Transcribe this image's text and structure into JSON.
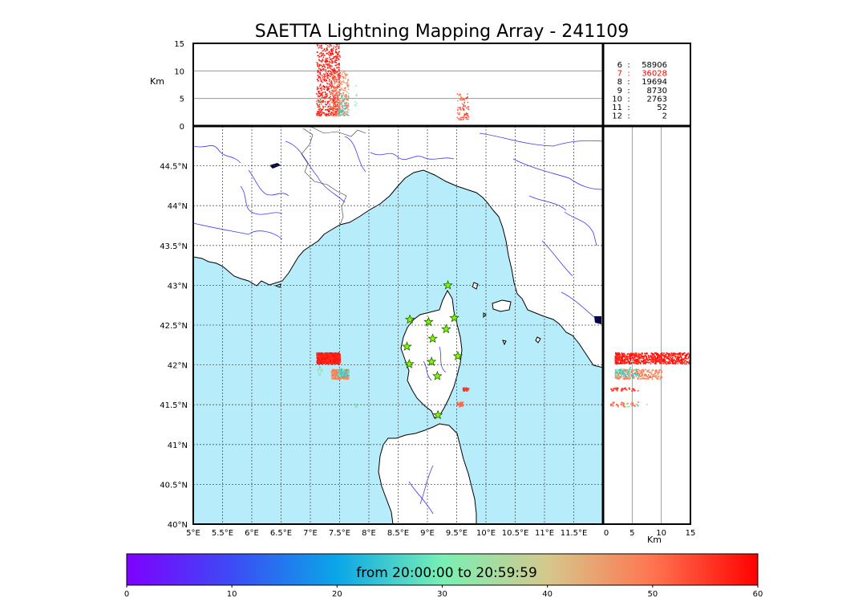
{
  "title": "SAETTA Lightning Mapping Array - 241109",
  "altitude_axis": {
    "label": "Km",
    "ticks": [
      0,
      5,
      10,
      15
    ],
    "tick_labels": [
      "0",
      "5",
      "10",
      "15"
    ],
    "range": [
      0,
      15
    ],
    "reference_lines": [
      5,
      10
    ]
  },
  "longitude_axis": {
    "ticks": [
      5,
      5.5,
      6,
      6.5,
      7,
      7.5,
      8,
      8.5,
      9,
      9.5,
      10,
      10.5,
      11,
      11.5
    ],
    "tick_labels": [
      "5°E",
      "5.5°E",
      "6°E",
      "6.5°E",
      "7°E",
      "7.5°E",
      "8°E",
      "8.5°E",
      "9°E",
      "9.5°E",
      "10°E",
      "10.5°E",
      "11°E",
      "11.5°E"
    ],
    "range": [
      5,
      12
    ]
  },
  "latitude_axis": {
    "ticks": [
      40,
      40.5,
      41,
      41.5,
      42,
      42.5,
      43,
      43.5,
      44,
      44.5
    ],
    "tick_labels": [
      "40°N",
      "40.5°N",
      "41°N",
      "41.5°N",
      "42°N",
      "42.5°N",
      "43°N",
      "43.5°N",
      "44°N",
      "44.5°N"
    ],
    "range": [
      40,
      45
    ]
  },
  "colorbar": {
    "label": "from 20:00:00 to 20:59:59",
    "ticks": [
      0,
      10,
      20,
      30,
      40,
      50,
      60
    ],
    "tick_labels": [
      "0",
      "10",
      "20",
      "30",
      "40",
      "50",
      "60"
    ],
    "range": [
      0,
      60
    ]
  },
  "station_counts": [
    {
      "stations": "6",
      "sep": ":",
      "count": "58906",
      "highlight": false
    },
    {
      "stations": "7",
      "sep": ":",
      "count": "36028",
      "highlight": true
    },
    {
      "stations": "8",
      "sep": ":",
      "count": "19694",
      "highlight": false
    },
    {
      "stations": "9",
      "sep": ":",
      "count": "8730",
      "highlight": false
    },
    {
      "stations": "10",
      "sep": ":",
      "count": "2763",
      "highlight": false
    },
    {
      "stations": "11",
      "sep": ":",
      "count": "52",
      "highlight": false
    },
    {
      "stations": "12",
      "sep": ":",
      "count": "2",
      "highlight": false
    }
  ],
  "colors": {
    "sea": "#b7ecfb",
    "land": "#ffffff",
    "river": "#3a3af0",
    "coast": "#000000",
    "grid": "#555555",
    "station_fill": "#7cfc00",
    "highlight": "#ff0000"
  },
  "chart_data": {
    "type": "scatter",
    "x_unit": "longitude (deg E)",
    "y_unit": "latitude (deg N)",
    "time_range": [
      "20:00:00",
      "20:59:59"
    ],
    "stations": [
      {
        "lon": 9.35,
        "lat": 43.0
      },
      {
        "lon": 8.7,
        "lat": 42.57
      },
      {
        "lon": 9.02,
        "lat": 42.54
      },
      {
        "lon": 9.46,
        "lat": 42.59
      },
      {
        "lon": 9.09,
        "lat": 42.33
      },
      {
        "lon": 9.32,
        "lat": 42.45
      },
      {
        "lon": 8.65,
        "lat": 42.23
      },
      {
        "lon": 9.52,
        "lat": 42.11
      },
      {
        "lon": 8.69,
        "lat": 42.01
      },
      {
        "lon": 9.07,
        "lat": 42.04
      },
      {
        "lon": 9.17,
        "lat": 41.86
      },
      {
        "lon": 9.18,
        "lat": 41.37
      }
    ],
    "series": [
      {
        "lon": [
          7.1,
          7.5
        ],
        "lat": [
          42.02,
          42.16
        ],
        "alt_km": [
          2,
          15
        ],
        "time_min": [
          55,
          60
        ],
        "count": 700,
        "density": "high"
      },
      {
        "lon": [
          7.35,
          7.65
        ],
        "lat": [
          41.83,
          41.95
        ],
        "alt_km": [
          2,
          10
        ],
        "time_min": [
          44,
          52
        ],
        "count": 260,
        "density": "mid"
      },
      {
        "lon": [
          7.45,
          7.65
        ],
        "lat": [
          41.86,
          41.96
        ],
        "alt_km": [
          2,
          6
        ],
        "time_min": [
          22,
          30
        ],
        "count": 60,
        "density": "low"
      },
      {
        "lon": [
          9.6,
          9.7
        ],
        "lat": [
          41.68,
          41.72
        ],
        "alt_km": [
          1.2,
          6
        ],
        "time_min": [
          53,
          57
        ],
        "count": 40,
        "density": "mid"
      },
      {
        "lon": [
          9.5,
          9.6
        ],
        "lat": [
          41.48,
          41.54
        ],
        "alt_km": [
          1.2,
          6
        ],
        "time_min": [
          49,
          53
        ],
        "count": 40,
        "density": "mid"
      },
      {
        "lon": [
          7.75,
          7.8
        ],
        "lat": [
          41.48,
          41.52
        ],
        "alt_km": [
          3,
          8
        ],
        "time_min": [
          28,
          36
        ],
        "count": 8,
        "density": "low"
      },
      {
        "lon": [
          7.1,
          7.2
        ],
        "lat": [
          41.88,
          41.98
        ],
        "alt_km": [
          3,
          6
        ],
        "time_min": [
          25,
          35
        ],
        "count": 10,
        "density": "low"
      }
    ]
  }
}
